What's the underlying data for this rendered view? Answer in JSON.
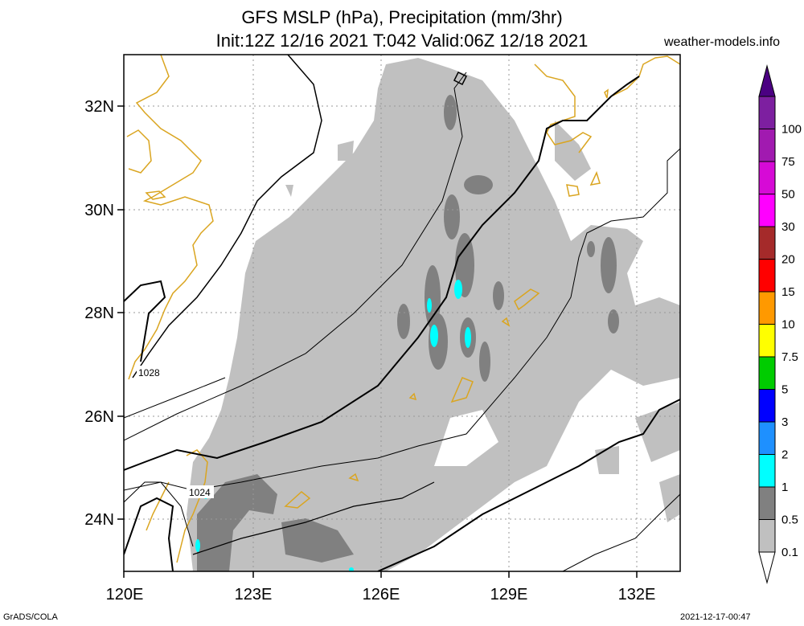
{
  "title": {
    "line1": "GFS MSLP (hPa), Precipitation (mm/3hr)",
    "line2": "Init:12Z 12/16 2021 T:042 Valid:06Z 12/18 2021"
  },
  "site": "weather-models.info",
  "footer": {
    "left": "GrADS/COLA",
    "right": "2021-12-17-00:47"
  },
  "axes": {
    "lon_labels": [
      "120E",
      "123E",
      "126E",
      "129E",
      "132E"
    ],
    "lat_labels": [
      "32N",
      "30N",
      "28N",
      "26N",
      "24N"
    ]
  },
  "isobar_labels": [
    "1028",
    "1024"
  ],
  "colorbar": {
    "labels": [
      "100",
      "75",
      "50",
      "30",
      "20",
      "15",
      "10",
      "7.5",
      "5",
      "3",
      "2",
      "1",
      "0.5",
      "0.1"
    ],
    "colors": [
      "#7d1fa0",
      "#a11ab0",
      "#d60ad6",
      "#ff00ff",
      "#a52a2a",
      "#ff0000",
      "#ff9900",
      "#ffff00",
      "#00cc00",
      "#0000ff",
      "#1e90ff",
      "#00ffff",
      "#808080",
      "#c0c0c0"
    ],
    "top_arrow_color": "#4b0082",
    "bottom_arrow_color": "#ffffff"
  },
  "colors": {
    "light_precip": "#c0c0c0",
    "medium_precip": "#808080",
    "heavy_precip": "#00ffff",
    "coastline": "#daa520",
    "isobar": "#000000",
    "grid": "#999999"
  }
}
